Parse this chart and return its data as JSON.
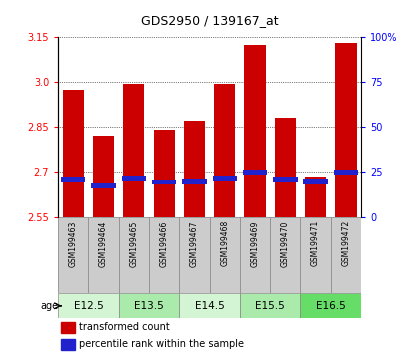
{
  "title": "GDS2950 / 139167_at",
  "samples": [
    "GSM199463",
    "GSM199464",
    "GSM199465",
    "GSM199466",
    "GSM199467",
    "GSM199468",
    "GSM199469",
    "GSM199470",
    "GSM199471",
    "GSM199472"
  ],
  "bar_tops": [
    2.975,
    2.82,
    2.995,
    2.84,
    2.87,
    2.995,
    3.125,
    2.88,
    2.685,
    3.13
  ],
  "bar_bottoms": [
    2.55,
    2.55,
    2.55,
    2.55,
    2.55,
    2.55,
    2.55,
    2.55,
    2.55,
    2.55
  ],
  "percentile_values": [
    21.0,
    17.5,
    21.5,
    19.5,
    20.0,
    21.5,
    25.0,
    21.0,
    20.0,
    25.0
  ],
  "age_groups": [
    {
      "label": "E12.5",
      "samples": [
        0,
        1
      ]
    },
    {
      "label": "E13.5",
      "samples": [
        2,
        3
      ]
    },
    {
      "label": "E14.5",
      "samples": [
        4,
        5
      ]
    },
    {
      "label": "E15.5",
      "samples": [
        6,
        7
      ]
    },
    {
      "label": "E16.5",
      "samples": [
        8,
        9
      ]
    }
  ],
  "age_colors": [
    "#d4f5d4",
    "#aaeaaa",
    "#d4f5d4",
    "#aaeaaa",
    "#66dd66"
  ],
  "ylim_left": [
    2.55,
    3.15
  ],
  "ylim_right": [
    0,
    100
  ],
  "yticks_left": [
    2.55,
    2.7,
    2.85,
    3.0,
    3.15
  ],
  "yticks_right": [
    0,
    25,
    50,
    75,
    100
  ],
  "ytick_labels_right": [
    "0",
    "25",
    "50",
    "75",
    "100%"
  ],
  "bar_color": "#cc0000",
  "blue_marker_color": "#2222cc",
  "grid_color": "black",
  "bg_plot": "white",
  "bg_labels": "#cccccc",
  "legend_red_label": "transformed count",
  "legend_blue_label": "percentile rank within the sample",
  "bar_width": 0.7,
  "age_label": "age"
}
